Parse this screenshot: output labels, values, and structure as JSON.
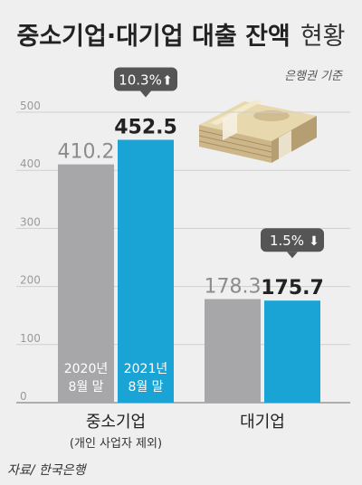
{
  "chart_data": {
    "type": "bar",
    "title": "중소기업·대기업 대출 잔액",
    "title_suffix": "현황",
    "unit_note": "은행권 기준",
    "source": "자료/ 한국은행",
    "ylim": [
      0,
      500
    ],
    "yticks": [
      "0",
      "100",
      "200",
      "300",
      "400",
      "500"
    ],
    "grid": true,
    "categories": [
      {
        "label": "중소기업",
        "sublabel": "(개인 사업자 제외)"
      },
      {
        "label": "대기업",
        "sublabel": ""
      }
    ],
    "series": [
      {
        "name": "2020년 8월 말",
        "name_line1": "2020년",
        "name_line2": "8월 말",
        "color": "#a7a7a9",
        "values": [
          410.2,
          178.3
        ],
        "labels": [
          "410.2",
          "178.3"
        ]
      },
      {
        "name": "2021년 8월 말",
        "name_line1": "2021년",
        "name_line2": "8월 말",
        "color": "#1aa4d6",
        "values": [
          452.5,
          175.7
        ],
        "labels": [
          "452.5",
          "175.7"
        ]
      }
    ],
    "changes": [
      {
        "text": "10.3%",
        "direction": "up",
        "arrow": "⬆"
      },
      {
        "text": "1.5%",
        "direction": "down",
        "arrow": "⬇"
      }
    ],
    "colors": {
      "badge": "#555555",
      "text_dark": "#222222",
      "text_gray": "#8c8c8c",
      "grid": "#cfcfcf"
    }
  }
}
